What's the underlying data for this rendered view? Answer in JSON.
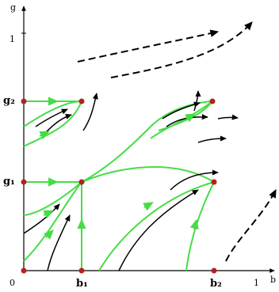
{
  "axes": {
    "y_label": "g",
    "x_label": "b",
    "origin_label": "0",
    "x_tick_one": "1",
    "y_tick_one": "1"
  },
  "fixed_points": {
    "g2": "g₂",
    "g1": "g₁",
    "b1": "b₁",
    "b2": "b₂"
  },
  "colors": {
    "axis": "#000000",
    "fixed_point": "#b22222",
    "separatrix": "#44dd44",
    "flow": "#000000"
  }
}
